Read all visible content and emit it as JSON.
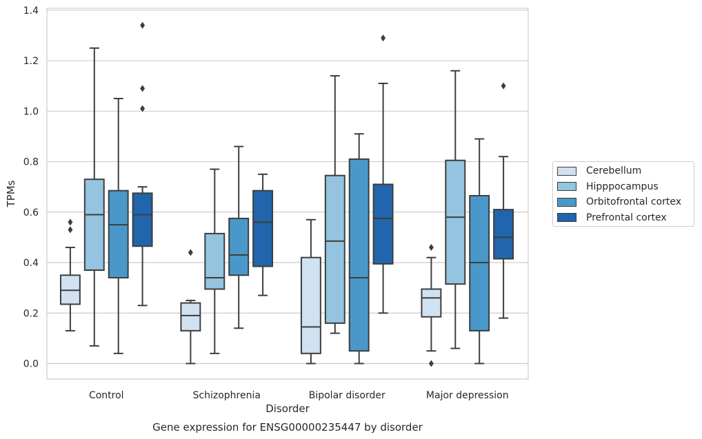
{
  "chart_data": {
    "type": "box",
    "caption": "Gene expression for ENSG00000235447 by disorder",
    "xlabel": "Disorder",
    "ylabel": "TPMs",
    "ylim": [
      -0.06,
      1.41
    ],
    "yticks": [
      "0.0",
      "0.2",
      "0.4",
      "0.6",
      "0.8",
      "1.0",
      "1.2",
      "1.4"
    ],
    "grid": "horizontal",
    "legend_position": "right",
    "categories": [
      "Control",
      "Schizophrenia",
      "Bipolar disorder",
      "Major depression"
    ],
    "series": [
      {
        "name": "Cerebellum",
        "color": "#d0e1f2",
        "boxes": [
          {
            "whisker_low": 0.13,
            "q1": 0.235,
            "median": 0.29,
            "q3": 0.35,
            "whisker_high": 0.46,
            "outliers": [
              0.53,
              0.56
            ]
          },
          {
            "whisker_low": 0.0,
            "q1": 0.13,
            "median": 0.19,
            "q3": 0.24,
            "whisker_high": 0.25,
            "outliers": [
              0.44
            ]
          },
          {
            "whisker_low": 0.0,
            "q1": 0.04,
            "median": 0.145,
            "q3": 0.42,
            "whisker_high": 0.57,
            "outliers": []
          },
          {
            "whisker_low": 0.05,
            "q1": 0.185,
            "median": 0.26,
            "q3": 0.295,
            "whisker_high": 0.42,
            "outliers": [
              0.0,
              0.46
            ]
          }
        ]
      },
      {
        "name": "Hipppocampus",
        "color": "#94c4df",
        "boxes": [
          {
            "whisker_low": 0.07,
            "q1": 0.37,
            "median": 0.59,
            "q3": 0.73,
            "whisker_high": 1.25,
            "outliers": []
          },
          {
            "whisker_low": 0.04,
            "q1": 0.295,
            "median": 0.34,
            "q3": 0.515,
            "whisker_high": 0.77,
            "outliers": []
          },
          {
            "whisker_low": 0.12,
            "q1": 0.16,
            "median": 0.485,
            "q3": 0.745,
            "whisker_high": 1.14,
            "outliers": []
          },
          {
            "whisker_low": 0.06,
            "q1": 0.315,
            "median": 0.58,
            "q3": 0.805,
            "whisker_high": 1.16,
            "outliers": []
          }
        ]
      },
      {
        "name": "Orbitofrontal cortex",
        "color": "#4a98c9",
        "boxes": [
          {
            "whisker_low": 0.04,
            "q1": 0.34,
            "median": 0.55,
            "q3": 0.685,
            "whisker_high": 1.05,
            "outliers": []
          },
          {
            "whisker_low": 0.14,
            "q1": 0.35,
            "median": 0.43,
            "q3": 0.575,
            "whisker_high": 0.86,
            "outliers": []
          },
          {
            "whisker_low": 0.0,
            "q1": 0.05,
            "median": 0.34,
            "q3": 0.81,
            "whisker_high": 0.91,
            "outliers": []
          },
          {
            "whisker_low": 0.0,
            "q1": 0.13,
            "median": 0.4,
            "q3": 0.665,
            "whisker_high": 0.89,
            "outliers": []
          }
        ]
      },
      {
        "name": "Prefrontal cortex",
        "color": "#2166ac",
        "boxes": [
          {
            "whisker_low": 0.23,
            "q1": 0.465,
            "median": 0.59,
            "q3": 0.675,
            "whisker_high": 0.7,
            "outliers": [
              1.01,
              1.09,
              1.34
            ]
          },
          {
            "whisker_low": 0.27,
            "q1": 0.385,
            "median": 0.56,
            "q3": 0.685,
            "whisker_high": 0.75,
            "outliers": []
          },
          {
            "whisker_low": 0.2,
            "q1": 0.395,
            "median": 0.575,
            "q3": 0.71,
            "whisker_high": 1.11,
            "outliers": [
              1.29
            ]
          },
          {
            "whisker_low": 0.18,
            "q1": 0.415,
            "median": 0.5,
            "q3": 0.61,
            "whisker_high": 0.82,
            "outliers": [
              1.1
            ]
          }
        ]
      }
    ]
  }
}
